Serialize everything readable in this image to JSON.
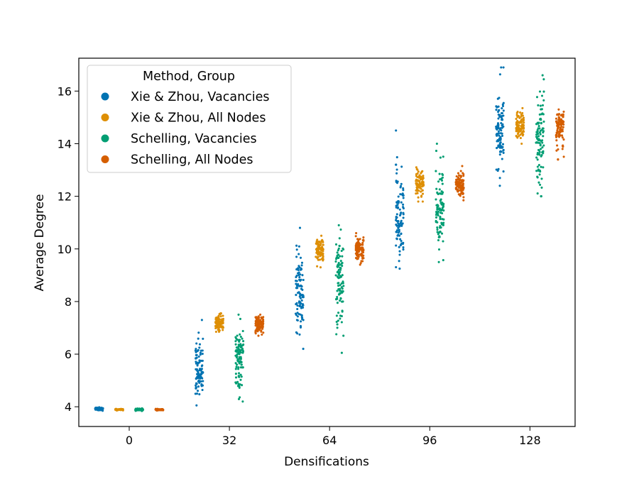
{
  "chart_data": {
    "type": "scatter",
    "subtype": "strip",
    "xlabel": "Densifications",
    "ylabel": "Average Degree",
    "categories": [
      "0",
      "32",
      "64",
      "96",
      "128"
    ],
    "yticks": [
      4,
      6,
      8,
      10,
      12,
      14,
      16
    ],
    "ylim": [
      3.25,
      17.25
    ],
    "grid": false,
    "legend": {
      "title": "Method, Group",
      "placement": "top-left",
      "entries": [
        "Xie & Zhou, Vacancies",
        "Xie & Zhou, All Nodes",
        "Schelling, Vacancies",
        "Schelling, All Nodes"
      ]
    },
    "series": [
      {
        "name": "Xie & Zhou, Vacancies",
        "color": "#0173b2",
        "points_per_category": 100,
        "summary": [
          {
            "category": "0",
            "min": 3.85,
            "median": 3.92,
            "max": 3.98
          },
          {
            "category": "32",
            "min": 4.05,
            "median": 5.3,
            "max": 7.3
          },
          {
            "category": "64",
            "min": 6.2,
            "median": 8.3,
            "max": 10.8
          },
          {
            "category": "96",
            "min": 9.25,
            "median": 11.2,
            "max": 14.5
          },
          {
            "category": "128",
            "min": 12.4,
            "median": 14.4,
            "max": 16.9
          }
        ]
      },
      {
        "name": "Xie & Zhou, All Nodes",
        "color": "#de8f05",
        "points_per_category": 100,
        "summary": [
          {
            "category": "0",
            "min": 3.86,
            "median": 3.89,
            "max": 3.92
          },
          {
            "category": "32",
            "min": 6.85,
            "median": 7.2,
            "max": 7.55
          },
          {
            "category": "64",
            "min": 9.3,
            "median": 10.05,
            "max": 10.5
          },
          {
            "category": "96",
            "min": 11.8,
            "median": 12.45,
            "max": 13.1
          },
          {
            "category": "128",
            "min": 14.0,
            "median": 14.7,
            "max": 15.35
          }
        ]
      },
      {
        "name": "Schelling, Vacancies",
        "color": "#029e73",
        "points_per_category": 100,
        "summary": [
          {
            "category": "0",
            "min": 3.84,
            "median": 3.89,
            "max": 3.94
          },
          {
            "category": "32",
            "min": 4.2,
            "median": 5.95,
            "max": 7.5
          },
          {
            "category": "64",
            "min": 6.05,
            "median": 8.9,
            "max": 10.9
          },
          {
            "category": "96",
            "min": 9.5,
            "median": 11.6,
            "max": 14.0
          },
          {
            "category": "128",
            "min": 12.0,
            "median": 14.1,
            "max": 16.6
          }
        ]
      },
      {
        "name": "Schelling, All Nodes",
        "color": "#d55e00",
        "points_per_category": 100,
        "summary": [
          {
            "category": "0",
            "min": 3.86,
            "median": 3.89,
            "max": 3.92
          },
          {
            "category": "32",
            "min": 6.7,
            "median": 7.15,
            "max": 7.5
          },
          {
            "category": "64",
            "min": 9.4,
            "median": 10.0,
            "max": 10.6
          },
          {
            "category": "96",
            "min": 11.85,
            "median": 12.45,
            "max": 13.15
          },
          {
            "category": "128",
            "min": 13.4,
            "median": 14.7,
            "max": 15.3
          }
        ]
      }
    ]
  }
}
